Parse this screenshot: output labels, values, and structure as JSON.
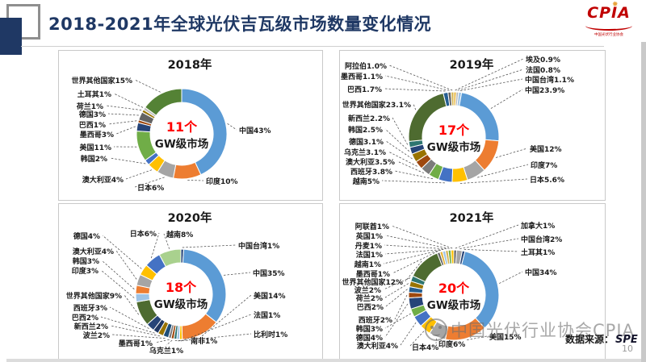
{
  "header": {
    "title": "2018-2021年全球光伏吉瓦级市场数量变化情况",
    "logo": {
      "text": "CPIA",
      "subtext": "中国光伏行业协会"
    }
  },
  "footer": {
    "watermark": "中国光伏行业协会CPIA",
    "source_label": "数据来源：",
    "source_value": "SPE",
    "page_number": "10"
  },
  "colors": {
    "title_navy": "#1F3864",
    "center_count_red": "#FF0000",
    "logo_red": "#C00000"
  },
  "chart_data": [
    {
      "type": "pie",
      "subtype": "donut",
      "title": "2018年",
      "center_count": "11个",
      "center_label": "GW级市场",
      "center": [
        152,
        103
      ],
      "radius": [
        39,
        56
      ],
      "segments": [
        {
          "label": "中国43%",
          "name": "中国",
          "value": 43,
          "color": "#5B9BD5",
          "pos": [
            223,
            100
          ],
          "anchor": "start"
        },
        {
          "label": "印度10%",
          "name": "印度",
          "value": 10,
          "color": "#ED7D31",
          "pos": [
            182,
            163
          ],
          "anchor": "start"
        },
        {
          "label": "日本6%",
          "name": "日本",
          "value": 6,
          "color": "#A5A5A5",
          "pos": [
            97,
            171
          ],
          "anchor": "start"
        },
        {
          "label": "澳大利亚4%",
          "name": "澳大利亚",
          "value": 4,
          "color": "#FFC000",
          "pos": [
            80,
            161
          ],
          "anchor": "end"
        },
        {
          "label": "韩国2%",
          "name": "韩国",
          "value": 2,
          "color": "#4472C4",
          "pos": [
            60,
            135
          ],
          "anchor": "end"
        },
        {
          "label": "美国11%",
          "name": "美国",
          "value": 11,
          "color": "#70AD47",
          "pos": [
            65,
            121
          ],
          "anchor": "end"
        },
        {
          "label": "墨西哥3%",
          "name": "墨西哥",
          "value": 3,
          "color": "#264478",
          "pos": [
            68,
            105
          ],
          "anchor": "end"
        },
        {
          "label": "巴西1%",
          "name": "巴西",
          "value": 1,
          "color": "#9E480E",
          "pos": [
            58,
            93
          ],
          "anchor": "end"
        },
        {
          "label": "德国3%",
          "name": "德国",
          "value": 3,
          "color": "#636363",
          "pos": [
            58,
            80
          ],
          "anchor": "end"
        },
        {
          "label": "荷兰1%",
          "name": "荷兰",
          "value": 1,
          "color": "#997300",
          "pos": [
            55,
            70
          ],
          "anchor": "end"
        },
        {
          "label": "土耳其1%",
          "name": "土耳其",
          "value": 1,
          "color": "#BFBFBF",
          "pos": [
            65,
            55
          ],
          "anchor": "end"
        },
        {
          "label": "世界其他国家15%",
          "name": "世界其他国家",
          "value": 15,
          "color": "#548235",
          "pos": [
            91,
            38
          ],
          "anchor": "end"
        }
      ]
    },
    {
      "type": "pie",
      "subtype": "donut",
      "title": "2019年",
      "center_count": "17个",
      "center_label": "GW级市场",
      "center": [
        141,
        107
      ],
      "radius": [
        39,
        56
      ],
      "segments": [
        {
          "label": "埃及0.9%",
          "name": "埃及",
          "value": 0.9,
          "color": "#E8B63C",
          "pos": [
            230,
            12
          ],
          "anchor": "start"
        },
        {
          "label": "法国0.8%",
          "name": "法国",
          "value": 0.8,
          "color": "#B3B3B3",
          "pos": [
            230,
            25
          ],
          "anchor": "start"
        },
        {
          "label": "中国台湾1.1%",
          "name": "中国台湾",
          "value": 1.1,
          "color": "#9DC3E6",
          "pos": [
            229,
            37
          ],
          "anchor": "start"
        },
        {
          "label": "中国23.9%",
          "name": "中国",
          "value": 23.9,
          "color": "#5B9BD5",
          "pos": [
            229,
            50
          ],
          "anchor": "start"
        },
        {
          "label": "美国12%",
          "name": "美国",
          "value": 12,
          "color": "#ED7D31",
          "pos": [
            235,
            123
          ],
          "anchor": "start"
        },
        {
          "label": "印度7%",
          "name": "印度",
          "value": 7,
          "color": "#A5A5A5",
          "pos": [
            236,
            143
          ],
          "anchor": "start"
        },
        {
          "label": "日本5.6%",
          "name": "日本",
          "value": 5.6,
          "color": "#FFC000",
          "pos": [
            235,
            161
          ],
          "anchor": "start"
        },
        {
          "label": "越南5%",
          "name": "越南",
          "value": 5,
          "color": "#4472C4",
          "pos": [
            49,
            163
          ],
          "anchor": "end"
        },
        {
          "label": "西班牙3.8%",
          "name": "西班牙",
          "value": 3.8,
          "color": "#70AD47",
          "pos": [
            65,
            151
          ],
          "anchor": "end"
        },
        {
          "label": "澳大利亚3.5%",
          "name": "澳大利亚",
          "value": 3.5,
          "color": "#7B7B7B",
          "pos": [
            68,
            139
          ],
          "anchor": "end"
        },
        {
          "label": "乌克兰3.1%",
          "name": "乌克兰",
          "value": 3.1,
          "color": "#9E480E",
          "pos": [
            57,
            127
          ],
          "anchor": "end"
        },
        {
          "label": "德国3.1%",
          "name": "德国",
          "value": 3.1,
          "color": "#997300",
          "pos": [
            54,
            114
          ],
          "anchor": "end"
        },
        {
          "label": "韩国2.5%",
          "name": "韩国",
          "value": 2.5,
          "color": "#264478",
          "pos": [
            53,
            99
          ],
          "anchor": "end"
        },
        {
          "label": "新西兰2.2%",
          "name": "新西兰",
          "value": 2.2,
          "color": "#2E7570",
          "pos": [
            62,
            85
          ],
          "anchor": "end"
        },
        {
          "label": "世界其他国家23.1%",
          "name": "世界其他国家",
          "value": 23.1,
          "color": "#4E6B30",
          "pos": [
            88,
            68
          ],
          "anchor": "end"
        },
        {
          "label": "巴西1.7%",
          "name": "巴西",
          "value": 1.7,
          "color": "#255E91",
          "pos": [
            52,
            49
          ],
          "anchor": "end"
        },
        {
          "label": "墨西哥1.1%",
          "name": "墨西哥",
          "value": 1.1,
          "color": "#636363",
          "pos": [
            53,
            33
          ],
          "anchor": "end"
        },
        {
          "label": "阿拉伯1.0%",
          "name": "阿拉伯",
          "value": 1.0,
          "color": "#D6B656",
          "pos": [
            58,
            20
          ],
          "anchor": "end"
        }
      ]
    },
    {
      "type": "pie",
      "subtype": "donut",
      "title": "2020年",
      "center_count": "18个",
      "center_label": "GW级市场",
      "center": [
        151,
        112
      ],
      "radius": [
        39,
        56
      ],
      "segments": [
        {
          "label": "中国台湾1%",
          "name": "中国台湾",
          "value": 1,
          "color": "#264478",
          "pos": [
            222,
            53
          ],
          "anchor": "start"
        },
        {
          "label": "中国35%",
          "name": "中国",
          "value": 35,
          "color": "#5B9BD5",
          "pos": [
            240,
            87
          ],
          "anchor": "start"
        },
        {
          "label": "美国14%",
          "name": "美国",
          "value": 14,
          "color": "#ED7D31",
          "pos": [
            241,
            115
          ],
          "anchor": "start"
        },
        {
          "label": "法国1%",
          "name": "法国",
          "value": 1,
          "color": "#FFC000",
          "pos": [
            241,
            139
          ],
          "anchor": "start"
        },
        {
          "label": "比利时1%",
          "name": "比利时",
          "value": 1,
          "color": "#9DC3E6",
          "pos": [
            241,
            163
          ],
          "anchor": "start"
        },
        {
          "label": "南非1%",
          "name": "南非",
          "value": 1,
          "color": "#2E7570",
          "pos": [
            163,
            171
          ],
          "anchor": "start"
        },
        {
          "label": "乌克兰1%",
          "name": "乌克兰",
          "value": 1,
          "color": "#9E480E",
          "pos": [
            133,
            183
          ],
          "anchor": "middle"
        },
        {
          "label": "墨西哥1%",
          "name": "墨西哥",
          "value": 1,
          "color": "#7B7B7B",
          "pos": [
            116,
            174
          ],
          "anchor": "end"
        },
        {
          "label": "波兰2%",
          "name": "波兰",
          "value": 2,
          "color": "#1F4E79",
          "pos": [
            63,
            164
          ],
          "anchor": "end"
        },
        {
          "label": "新西兰2%",
          "name": "新西兰",
          "value": 2,
          "color": "#997300",
          "pos": [
            61,
            153
          ],
          "anchor": "end"
        },
        {
          "label": "巴西2%",
          "name": "巴西",
          "value": 2,
          "color": "#203864",
          "pos": [
            49,
            142
          ],
          "anchor": "end"
        },
        {
          "label": "西班牙3%",
          "name": "西班牙",
          "value": 3,
          "color": "#264478",
          "pos": [
            60,
            130
          ],
          "anchor": "end"
        },
        {
          "label": "世界其他国家9%",
          "name": "世界其他国家",
          "value": 9,
          "color": "#4E6B30",
          "pos": [
            78,
            115
          ],
          "anchor": "end"
        },
        {
          "label": "印度3%",
          "name": "印度",
          "value": 3,
          "color": "#9DC3E6",
          "pos": [
            49,
            84
          ],
          "anchor": "end"
        },
        {
          "label": "韩国3%",
          "name": "韩国",
          "value": 3,
          "color": "#ED7D31",
          "pos": [
            50,
            72
          ],
          "anchor": "end"
        },
        {
          "label": "澳大利亚4%",
          "name": "澳大利亚",
          "value": 4,
          "color": "#A5A5A5",
          "pos": [
            68,
            60
          ],
          "anchor": "end"
        },
        {
          "label": "德国4%",
          "name": "德国",
          "value": 4,
          "color": "#FFC000",
          "pos": [
            51,
            41
          ],
          "anchor": "end"
        },
        {
          "label": "日本6%",
          "name": "日本",
          "value": 6,
          "color": "#4472C4",
          "pos": [
            121,
            38
          ],
          "anchor": "end"
        },
        {
          "label": "越南8%",
          "name": "越南",
          "value": 8,
          "color": "#A9D18E",
          "pos": [
            133,
            39
          ],
          "anchor": "start"
        }
      ]
    },
    {
      "type": "pie",
      "subtype": "donut",
      "title": "2021年",
      "center_count": "20个",
      "center_label": "GW级市场",
      "center": [
        141,
        113
      ],
      "radius": [
        39,
        56
      ],
      "segments": [
        {
          "label": "加拿大1%",
          "name": "加拿大",
          "value": 1,
          "color": "#636363",
          "pos": [
            224,
            28
          ],
          "anchor": "start"
        },
        {
          "label": "中国台湾2%",
          "name": "中国台湾",
          "value": 2,
          "color": "#A5A5A5",
          "pos": [
            224,
            45
          ],
          "anchor": "start"
        },
        {
          "label": "土耳其1%",
          "name": "土耳其",
          "value": 1,
          "color": "#264478",
          "pos": [
            224,
            61
          ],
          "anchor": "start"
        },
        {
          "label": "中国34%",
          "name": "中国",
          "value": 34,
          "color": "#5B9BD5",
          "pos": [
            229,
            86
          ],
          "anchor": "start"
        },
        {
          "label": "美国15%",
          "name": "美国",
          "value": 15,
          "color": "#ED7D31",
          "pos": [
            185,
            166
          ],
          "anchor": "start"
        },
        {
          "label": "印度6%",
          "name": "印度",
          "value": 6,
          "color": "#A5A5A5",
          "pos": [
            122,
            175
          ],
          "anchor": "start"
        },
        {
          "label": "日本4%",
          "name": "日本",
          "value": 4,
          "color": "#FFC000",
          "pos": [
            89,
            179
          ],
          "anchor": "start"
        },
        {
          "label": "澳大利亚4%",
          "name": "澳大利亚",
          "value": 4,
          "color": "#4472C4",
          "pos": [
            72,
            177
          ],
          "anchor": "end"
        },
        {
          "label": "韩国3%",
          "name": "韩国",
          "value": 3,
          "color": "#70AD47",
          "pos": [
            53,
            156
          ],
          "anchor": "end"
        },
        {
          "label": "德国4%",
          "name": "德国",
          "value": 4,
          "color": "#264478",
          "pos": [
            53,
            167
          ],
          "anchor": "end"
        },
        {
          "label": "西班牙2%",
          "name": "西班牙",
          "value": 2,
          "color": "#9E480E",
          "pos": [
            65,
            145
          ],
          "anchor": "end"
        },
        {
          "label": "巴西2%",
          "name": "巴西",
          "value": 2,
          "color": "#255E91",
          "pos": [
            54,
            129
          ],
          "anchor": "end"
        },
        {
          "label": "荷兰2%",
          "name": "荷兰",
          "value": 2,
          "color": "#997300",
          "pos": [
            53,
            118
          ],
          "anchor": "end"
        },
        {
          "label": "波兰2%",
          "name": "波兰",
          "value": 2,
          "color": "#2E7570",
          "pos": [
            51,
            108
          ],
          "anchor": "end"
        },
        {
          "label": "世界其他国家12%",
          "name": "世界其他国家",
          "value": 12,
          "color": "#4E6B30",
          "pos": [
            78,
            98
          ],
          "anchor": "end"
        },
        {
          "label": "墨西哥1%",
          "name": "墨西哥",
          "value": 1,
          "color": "#636363",
          "pos": [
            62,
            88
          ],
          "anchor": "end"
        },
        {
          "label": "越南1%",
          "name": "越南",
          "value": 1,
          "color": "#E8B63C",
          "pos": [
            51,
            76
          ],
          "anchor": "end"
        },
        {
          "label": "法国1%",
          "name": "法国",
          "value": 1,
          "color": "#9DC3E6",
          "pos": [
            53,
            64
          ],
          "anchor": "end"
        },
        {
          "label": "丹麦1%",
          "name": "丹麦",
          "value": 1,
          "color": "#D6B656",
          "pos": [
            52,
            53
          ],
          "anchor": "end"
        },
        {
          "label": "英国1%",
          "name": "英国",
          "value": 1,
          "color": "#70AD47",
          "pos": [
            53,
            41
          ],
          "anchor": "end"
        },
        {
          "label": "阿联酋1%",
          "name": "阿联酋",
          "value": 1,
          "color": "#FFC000",
          "pos": [
            61,
            29
          ],
          "anchor": "end"
        }
      ]
    }
  ]
}
